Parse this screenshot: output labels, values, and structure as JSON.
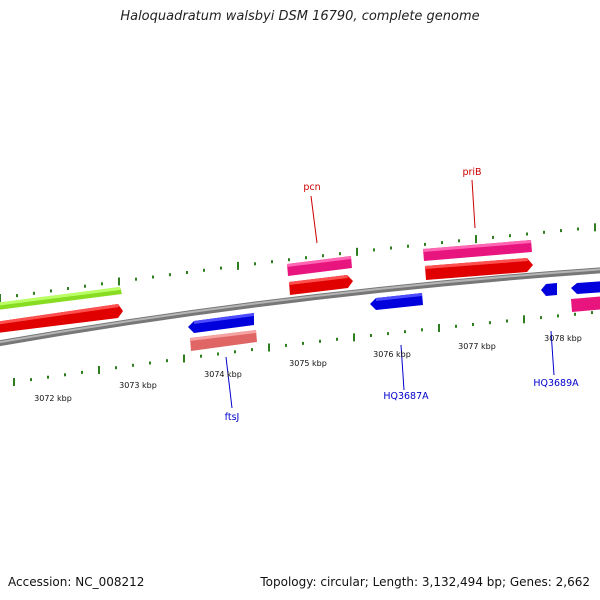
{
  "title": "Haloquadratum walsbyi DSM 16790, complete genome",
  "footer": {
    "accession": "Accession: NC_008212",
    "summary": "Topology: circular; Length: 3,132,494 bp; Genes: 2,662"
  },
  "colors": {
    "backbone": "#8c8c8c",
    "ticks": "#2e7d1e",
    "forward_gene": "#ff0000",
    "forward_rna": "#ff1493",
    "reverse_gene": "#0000ff",
    "reverse_rna": "#f08080",
    "special": "#99ff33",
    "label_red": "#cc0000",
    "label_blue": "#0000cc"
  },
  "scale": {
    "labels": [
      "3072 kbp",
      "3073 kbp",
      "3074 kbp",
      "3075 kbp",
      "3076 kbp",
      "3077 kbp",
      "3078 kbp"
    ]
  },
  "gene_labels": [
    {
      "name": "pcn",
      "strand": "forward"
    },
    {
      "name": "priB",
      "strand": "forward"
    },
    {
      "name": "ftsJ",
      "strand": "reverse"
    },
    {
      "name": "HQ3687A",
      "strand": "reverse"
    },
    {
      "name": "HQ3689A",
      "strand": "reverse"
    }
  ]
}
